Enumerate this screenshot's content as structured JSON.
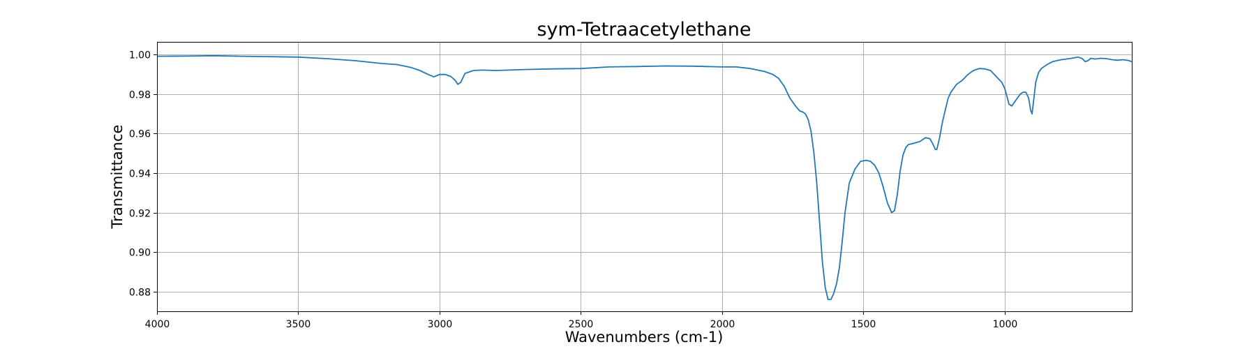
{
  "chart_data": {
    "type": "line",
    "title": "sym-Tetraacetylethane",
    "xlabel": "Wavenumbers (cm-1)",
    "ylabel": "Transmittance",
    "xlim": [
      4000,
      550
    ],
    "ylim": [
      0.87,
      1.0065
    ],
    "x_inverted": true,
    "grid": true,
    "x_ticks": [
      4000,
      3500,
      3000,
      2500,
      2000,
      1500,
      1000
    ],
    "x_tick_labels": [
      "4000",
      "3500",
      "3000",
      "2500",
      "2000",
      "1500",
      "1000"
    ],
    "y_ticks": [
      0.88,
      0.9,
      0.92,
      0.94,
      0.96,
      0.98,
      1.0
    ],
    "y_tick_labels": [
      "0.88",
      "0.90",
      "0.92",
      "0.94",
      "0.96",
      "0.98",
      "1.00"
    ],
    "colors": {
      "series": "#1f77b4"
    },
    "series": [
      {
        "color": "#1f77b4",
        "x": [
          4000,
          3900,
          3800,
          3700,
          3600,
          3500,
          3400,
          3300,
          3200,
          3150,
          3100,
          3070,
          3040,
          3020,
          3000,
          2980,
          2960,
          2945,
          2935,
          2925,
          2910,
          2880,
          2850,
          2800,
          2700,
          2600,
          2500,
          2400,
          2300,
          2200,
          2100,
          2000,
          1950,
          1900,
          1850,
          1820,
          1800,
          1780,
          1760,
          1740,
          1725,
          1715,
          1705,
          1695,
          1685,
          1675,
          1665,
          1655,
          1645,
          1635,
          1625,
          1615,
          1605,
          1595,
          1585,
          1575,
          1565,
          1550,
          1530,
          1510,
          1490,
          1475,
          1460,
          1445,
          1430,
          1415,
          1400,
          1390,
          1380,
          1370,
          1360,
          1350,
          1340,
          1325,
          1300,
          1280,
          1265,
          1255,
          1245,
          1240,
          1230,
          1220,
          1210,
          1200,
          1190,
          1170,
          1150,
          1130,
          1110,
          1090,
          1070,
          1050,
          1030,
          1010,
          1000,
          990,
          985,
          975,
          965,
          955,
          945,
          935,
          925,
          915,
          908,
          903,
          898,
          890,
          880,
          870,
          850,
          830,
          800,
          770,
          740,
          725,
          715,
          705,
          695,
          680,
          660,
          640,
          620,
          600,
          580,
          560,
          550
        ],
        "y": [
          0.9992,
          0.9993,
          0.9995,
          0.9992,
          0.999,
          0.9988,
          0.998,
          0.997,
          0.9955,
          0.995,
          0.9935,
          0.992,
          0.99,
          0.9888,
          0.99,
          0.99,
          0.989,
          0.987,
          0.985,
          0.986,
          0.9905,
          0.992,
          0.9922,
          0.992,
          0.9925,
          0.9928,
          0.993,
          0.9938,
          0.994,
          0.9943,
          0.9942,
          0.9938,
          0.9938,
          0.993,
          0.9915,
          0.99,
          0.988,
          0.984,
          0.978,
          0.974,
          0.9715,
          0.971,
          0.97,
          0.967,
          0.961,
          0.95,
          0.935,
          0.915,
          0.895,
          0.882,
          0.876,
          0.876,
          0.879,
          0.884,
          0.892,
          0.905,
          0.92,
          0.935,
          0.942,
          0.946,
          0.9465,
          0.946,
          0.944,
          0.94,
          0.933,
          0.925,
          0.92,
          0.921,
          0.929,
          0.941,
          0.949,
          0.953,
          0.9545,
          0.955,
          0.956,
          0.958,
          0.9575,
          0.955,
          0.952,
          0.952,
          0.958,
          0.966,
          0.972,
          0.978,
          0.981,
          0.985,
          0.987,
          0.99,
          0.992,
          0.993,
          0.9928,
          0.992,
          0.989,
          0.986,
          0.983,
          0.978,
          0.975,
          0.974,
          0.976,
          0.978,
          0.98,
          0.981,
          0.981,
          0.978,
          0.972,
          0.97,
          0.976,
          0.986,
          0.991,
          0.993,
          0.995,
          0.9965,
          0.9975,
          0.998,
          0.9988,
          0.998,
          0.9965,
          0.997,
          0.9982,
          0.9978,
          0.9982,
          0.998,
          0.9975,
          0.9972,
          0.9975,
          0.997,
          0.9965
        ]
      }
    ]
  }
}
